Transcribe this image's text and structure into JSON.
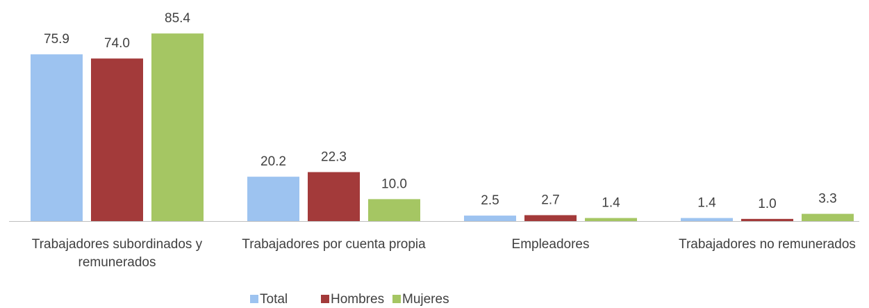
{
  "chart_data": {
    "type": "bar",
    "categories": [
      "Trabajadores subordinados y remunerados",
      "Trabajadores por cuenta propia",
      "Empleadores",
      "Trabajadores no remunerados"
    ],
    "series": [
      {
        "name": "Total",
        "color": "#9dc3f0",
        "values": [
          75.9,
          20.2,
          2.5,
          1.4
        ],
        "value_labels": [
          "75.9",
          "20.2",
          "2.5",
          "1.4"
        ]
      },
      {
        "name": "Hombres",
        "color": "#a33a3a",
        "values": [
          74.0,
          22.3,
          2.7,
          1.0
        ],
        "value_labels": [
          "74.0",
          "22.3",
          "2.7",
          "1.0"
        ]
      },
      {
        "name": "Mujeres",
        "color": "#a5c663",
        "values": [
          85.4,
          10.0,
          1.4,
          3.3
        ],
        "value_labels": [
          "85.4",
          "10.0",
          "1.4",
          "3.3"
        ]
      }
    ],
    "legend": "bottom"
  }
}
